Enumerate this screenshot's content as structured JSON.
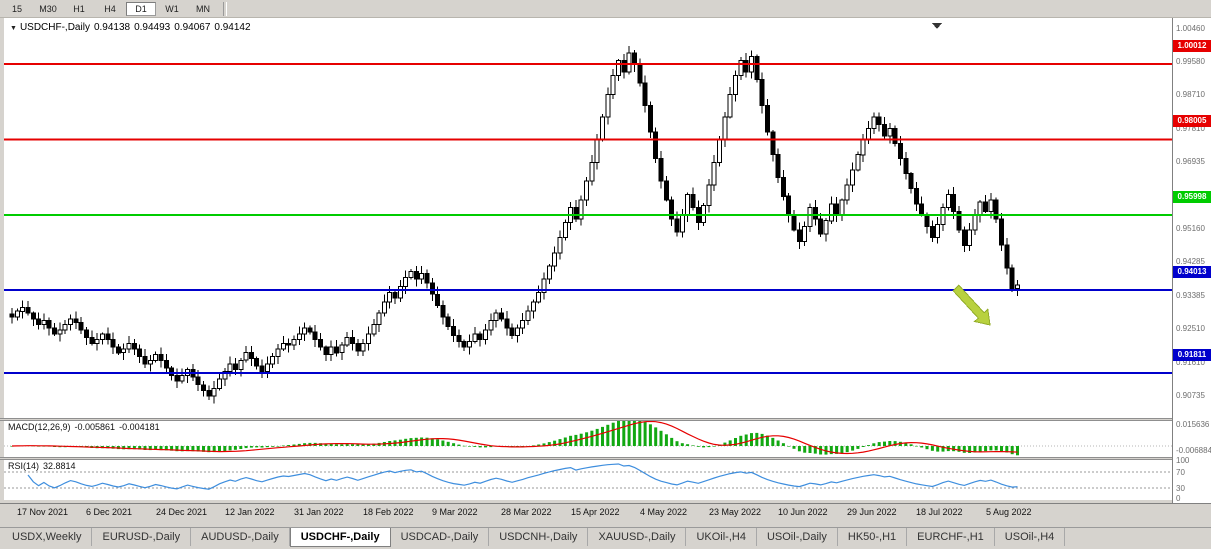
{
  "toolbar": {
    "timeframes": [
      {
        "label": "15",
        "active": false
      },
      {
        "label": "M30",
        "active": false
      },
      {
        "label": "H1",
        "active": false
      },
      {
        "label": "H4",
        "active": false
      },
      {
        "label": "D1",
        "active": true
      },
      {
        "label": "W1",
        "active": false
      },
      {
        "label": "MN",
        "active": false
      }
    ]
  },
  "header": {
    "symbol_line": "USDCHF-,Daily",
    "open": "0.94138",
    "high": "0.94493",
    "low": "0.94067",
    "close": "0.94142"
  },
  "chart_data": {
    "type": "candlestick",
    "symbol": "USDCHF-",
    "timeframe": "Daily",
    "colors": {
      "candle_up": "#ffffff",
      "candle_down": "#000000",
      "candle_outline": "#000000"
    },
    "closes": [
      0.933,
      0.9345,
      0.9355,
      0.934,
      0.9325,
      0.931,
      0.932,
      0.93,
      0.9285,
      0.9295,
      0.931,
      0.9325,
      0.9315,
      0.9295,
      0.9275,
      0.926,
      0.927,
      0.9285,
      0.927,
      0.925,
      0.9235,
      0.9245,
      0.926,
      0.9245,
      0.9225,
      0.9205,
      0.9215,
      0.923,
      0.9215,
      0.9195,
      0.9175,
      0.916,
      0.9175,
      0.919,
      0.917,
      0.915,
      0.9135,
      0.912,
      0.914,
      0.9165,
      0.9185,
      0.9205,
      0.919,
      0.9215,
      0.9235,
      0.922,
      0.92,
      0.9185,
      0.9205,
      0.9225,
      0.9245,
      0.926,
      0.9255,
      0.927,
      0.9285,
      0.93,
      0.929,
      0.927,
      0.925,
      0.923,
      0.925,
      0.9235,
      0.9255,
      0.9275,
      0.926,
      0.924,
      0.926,
      0.9285,
      0.931,
      0.934,
      0.937,
      0.9395,
      0.938,
      0.941,
      0.9435,
      0.945,
      0.943,
      0.9445,
      0.942,
      0.939,
      0.936,
      0.933,
      0.9305,
      0.928,
      0.9265,
      0.925,
      0.9265,
      0.9285,
      0.927,
      0.9295,
      0.932,
      0.934,
      0.9325,
      0.93,
      0.928,
      0.93,
      0.932,
      0.9345,
      0.937,
      0.9395,
      0.943,
      0.9465,
      0.95,
      0.954,
      0.958,
      0.962,
      0.959,
      0.964,
      0.969,
      0.974,
      0.98,
      0.986,
      0.992,
      0.997,
      1.001,
      0.998,
      1.003,
      1.0,
      0.995,
      0.989,
      0.982,
      0.975,
      0.969,
      0.964,
      0.959,
      0.9555,
      0.96,
      0.9655,
      0.962,
      0.958,
      0.9625,
      0.968,
      0.974,
      0.98,
      0.986,
      0.992,
      0.997,
      1.001,
      0.998,
      1.002,
      0.996,
      0.989,
      0.982,
      0.976,
      0.97,
      0.965,
      0.96,
      0.956,
      0.953,
      0.957,
      0.962,
      0.959,
      0.955,
      0.9585,
      0.963,
      0.96,
      0.964,
      0.968,
      0.972,
      0.976,
      0.98,
      0.983,
      0.986,
      0.984,
      0.981,
      0.983,
      0.979,
      0.975,
      0.971,
      0.967,
      0.963,
      0.96,
      0.957,
      0.954,
      0.9575,
      0.962,
      0.9655,
      0.961,
      0.956,
      0.952,
      0.956,
      0.96,
      0.9635,
      0.961,
      0.964,
      0.959,
      0.952,
      0.946,
      0.9405,
      0.9414
    ],
    "hlines": [
      {
        "price": 1.00012,
        "label": "1.00012",
        "color": "#e60000"
      },
      {
        "price": 0.98005,
        "label": "0.98005",
        "color": "#e60000"
      },
      {
        "price": 0.95998,
        "label": "0.95998",
        "color": "#00cc00"
      },
      {
        "price": 0.94013,
        "label": "0.94013",
        "color": "#0000cc"
      },
      {
        "price": 0.91811,
        "label": "0.91811",
        "color": "#0000cc"
      }
    ],
    "y_axis_labels": [
      "1.00460",
      "0.99580",
      "0.98710",
      "0.97810",
      "0.96935",
      "0.96060",
      "0.95160",
      "0.94285",
      "0.93385",
      "0.92510",
      "0.91610",
      "0.90735"
    ],
    "x_labels": [
      "17 Nov 2021",
      "6 Dec 2021",
      "24 Dec 2021",
      "12 Jan 2022",
      "31 Jan 2022",
      "18 Feb 2022",
      "9 Mar 2022",
      "28 Mar 2022",
      "15 Apr 2022",
      "4 May 2022",
      "23 May 2022",
      "10 Jun 2022",
      "29 Jun 2022",
      "18 Jul 2022",
      "5 Aug 2022"
    ],
    "indicators": {
      "macd": {
        "label": "MACD(12,26,9)",
        "value_main": "-0.005861",
        "value_signal": "-0.004181",
        "fast": 12,
        "slow": 26,
        "signal": 9,
        "axis_labels": [
          "0.015636",
          "-0.006884"
        ],
        "scale_max": 0.015636,
        "scale_min": -0.006884,
        "hist_color": "#12a812",
        "signal_color": "#e60000"
      },
      "rsi": {
        "label": "RSI(14)",
        "value": "32.8814",
        "period": 14,
        "levels": [
          70,
          30
        ],
        "axis_labels": [
          "100",
          "70",
          "30",
          "0"
        ],
        "line_color": "#3e8ede"
      }
    },
    "annotation_arrow": {
      "color": "#b8d13f",
      "edge_color": "#93ad2a"
    }
  },
  "tabs": {
    "items": [
      {
        "label": "USDX,Weekly",
        "active": false
      },
      {
        "label": "EURUSD-,Daily",
        "active": false
      },
      {
        "label": "AUDUSD-,Daily",
        "active": false
      },
      {
        "label": "USDCHF-,Daily",
        "active": true
      },
      {
        "label": "USDCAD-,Daily",
        "active": false
      },
      {
        "label": "USDCNH-,Daily",
        "active": false
      },
      {
        "label": "XAUUSD-,Daily",
        "active": false
      },
      {
        "label": "UKOil-,H4",
        "active": false
      },
      {
        "label": "USOil-,Daily",
        "active": false
      },
      {
        "label": "HK50-,H1",
        "active": false
      },
      {
        "label": "EURCHF-,H1",
        "active": false
      },
      {
        "label": "USOil-,H4",
        "active": false
      }
    ]
  }
}
